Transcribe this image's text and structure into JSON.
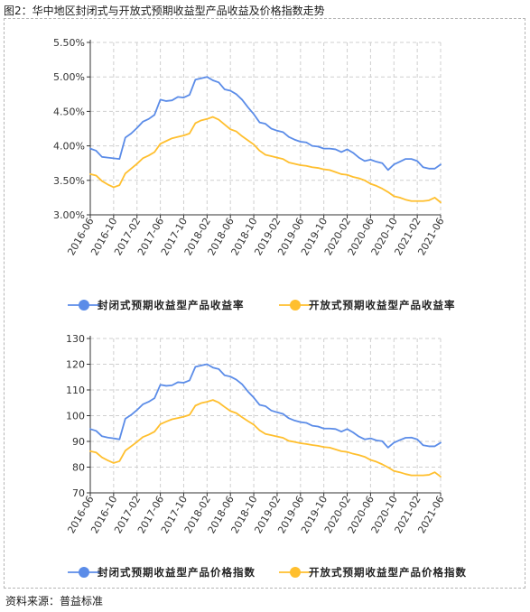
{
  "figure_title": "图2：华中地区封闭式与开放式预期收益型产品收益及价格指数走势",
  "source_text": "资料来源：普益标准",
  "colors": {
    "closed": "#5b8ce8",
    "open": "#ffbf2e",
    "grid": "#cfcfcf",
    "axis": "#333333"
  },
  "chart_data": [
    {
      "type": "line",
      "title": "",
      "x_tick_labels": [
        "2016-06",
        "2016-10",
        "2017-02",
        "2017-06",
        "2017-10",
        "2018-02",
        "2018-06",
        "2018-10",
        "2019-02",
        "2019-06",
        "2019-10",
        "2020-02",
        "2020-06",
        "2020-10",
        "2021-02",
        "2021-06"
      ],
      "y_tick_labels": [
        "3.00%",
        "3.50%",
        "4.00%",
        "4.50%",
        "5.00%",
        "5.50%"
      ],
      "ylim": [
        3.0,
        5.5
      ],
      "y_unit": "%",
      "grid": true,
      "legend_position": "bottom",
      "x_start": "2016-06",
      "series": [
        {
          "name": "封闭式预期收益型产品收益率",
          "color": "#5b8ce8",
          "values": [
            3.96,
            3.93,
            3.84,
            3.83,
            3.82,
            3.81,
            4.12,
            4.18,
            4.26,
            4.35,
            4.39,
            4.45,
            4.67,
            4.65,
            4.66,
            4.71,
            4.7,
            4.74,
            4.96,
            4.98,
            5.0,
            4.95,
            4.92,
            4.82,
            4.8,
            4.75,
            4.67,
            4.56,
            4.46,
            4.34,
            4.32,
            4.25,
            4.22,
            4.2,
            4.13,
            4.09,
            4.06,
            4.05,
            4.0,
            3.99,
            3.96,
            3.96,
            3.95,
            3.91,
            3.95,
            3.9,
            3.83,
            3.78,
            3.8,
            3.77,
            3.75,
            3.65,
            3.73,
            3.77,
            3.81,
            3.81,
            3.78,
            3.69,
            3.67,
            3.67,
            3.73
          ]
        },
        {
          "name": "开放式预期收益型产品收益率",
          "color": "#ffbf2e",
          "values": [
            3.59,
            3.57,
            3.49,
            3.44,
            3.4,
            3.43,
            3.6,
            3.67,
            3.74,
            3.82,
            3.86,
            3.91,
            4.03,
            4.07,
            4.11,
            4.13,
            4.15,
            4.18,
            4.33,
            4.37,
            4.39,
            4.42,
            4.38,
            4.31,
            4.24,
            4.21,
            4.14,
            4.08,
            4.02,
            3.93,
            3.87,
            3.85,
            3.83,
            3.81,
            3.76,
            3.74,
            3.72,
            3.71,
            3.69,
            3.68,
            3.66,
            3.65,
            3.62,
            3.59,
            3.58,
            3.55,
            3.53,
            3.5,
            3.45,
            3.42,
            3.38,
            3.33,
            3.27,
            3.25,
            3.22,
            3.2,
            3.2,
            3.2,
            3.21,
            3.25,
            3.18
          ]
        }
      ]
    },
    {
      "type": "line",
      "title": "",
      "x_tick_labels": [
        "2016-06",
        "2016-10",
        "2017-02",
        "2017-06",
        "2017-10",
        "2018-02",
        "2018-06",
        "2018-10",
        "2019-02",
        "2019-06",
        "2019-10",
        "2020-02",
        "2020-06",
        "2020-10",
        "2021-02",
        "2021-06"
      ],
      "y_tick_labels": [
        "70",
        "80",
        "90",
        "100",
        "110",
        "120",
        "130"
      ],
      "ylim": [
        70,
        130
      ],
      "grid": true,
      "legend_position": "bottom",
      "x_start": "2016-06",
      "series": [
        {
          "name": "封闭式预期收益型产品价格指数",
          "color": "#5b8ce8",
          "values": [
            94.8,
            94.1,
            92.0,
            91.5,
            91.2,
            90.8,
            98.8,
            100.3,
            102.2,
            104.4,
            105.4,
            106.8,
            112.0,
            111.6,
            111.8,
            113.0,
            112.8,
            113.7,
            119.0,
            119.5,
            120.0,
            118.7,
            118.1,
            115.7,
            115.2,
            114.0,
            112.2,
            109.4,
            107.0,
            104.2,
            103.7,
            102.0,
            101.3,
            100.7,
            99.0,
            98.1,
            97.5,
            97.2,
            96.1,
            95.8,
            95.0,
            95.0,
            94.8,
            93.8,
            94.8,
            93.5,
            91.9,
            90.8,
            91.2,
            90.4,
            90.1,
            87.6,
            89.5,
            90.5,
            91.4,
            91.5,
            90.8,
            88.5,
            88.1,
            88.1,
            89.5
          ]
        },
        {
          "name": "开放式预期收益型产品价格指数",
          "color": "#ffbf2e",
          "values": [
            86.2,
            85.7,
            83.8,
            82.6,
            81.6,
            82.3,
            86.4,
            88.1,
            89.8,
            91.7,
            92.6,
            93.8,
            96.7,
            97.7,
            98.6,
            99.1,
            99.6,
            100.3,
            103.9,
            104.9,
            105.4,
            106.1,
            105.1,
            103.4,
            101.8,
            101.0,
            99.4,
            97.9,
            96.5,
            94.3,
            92.9,
            92.4,
            91.9,
            91.4,
            90.2,
            89.8,
            89.3,
            89.0,
            88.6,
            88.3,
            87.8,
            87.6,
            86.9,
            86.2,
            85.9,
            85.2,
            84.7,
            84.0,
            82.8,
            82.1,
            81.1,
            79.9,
            78.5,
            78.0,
            77.3,
            76.8,
            76.8,
            76.8,
            77.0,
            78.0,
            76.3
          ]
        }
      ]
    }
  ]
}
